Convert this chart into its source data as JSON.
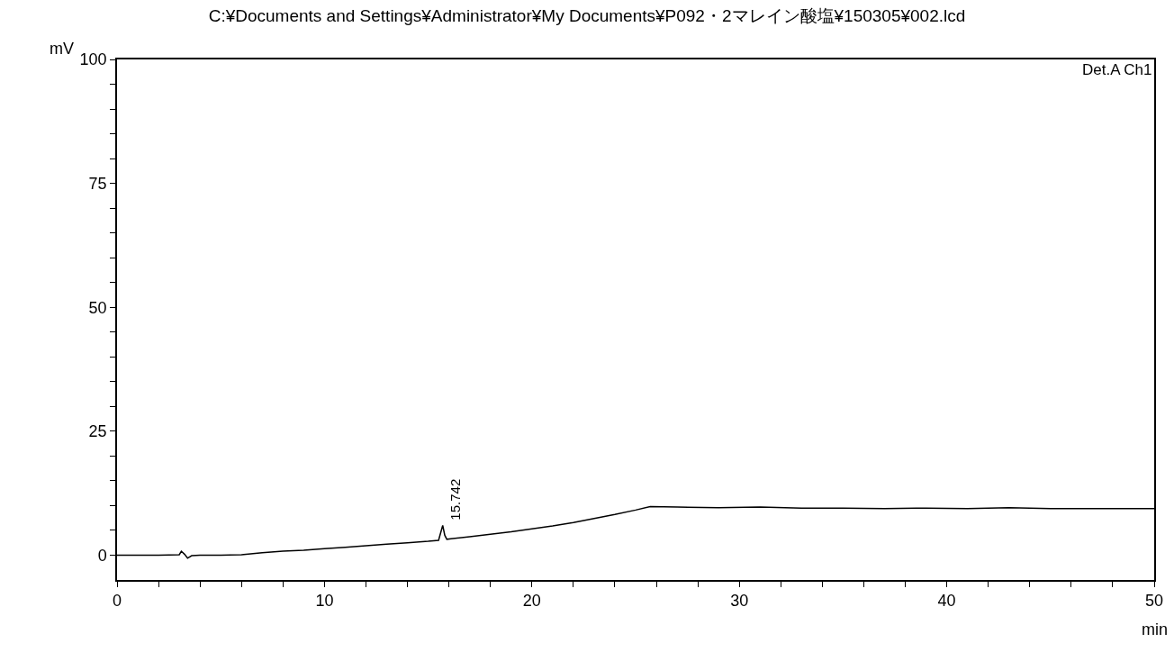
{
  "chart_data": {
    "type": "line",
    "title": "C:¥Documents and Settings¥Administrator¥My Documents¥P092・2マレイン酸塩¥150305¥002.lcd",
    "xlabel": "min",
    "ylabel": "mV",
    "x": [
      0,
      1,
      2,
      3,
      3.1,
      3.25,
      3.4,
      3.6,
      4,
      5,
      6,
      7,
      8,
      9,
      10,
      11,
      12,
      13,
      14,
      15,
      15.5,
      15.6,
      15.7,
      15.8,
      15.9,
      16.1,
      17,
      18,
      19,
      20,
      21,
      22,
      23,
      24,
      25,
      25.7,
      27,
      29,
      31,
      33,
      35,
      37,
      39,
      41,
      43,
      45,
      47,
      50
    ],
    "series": [
      {
        "color": "#000000",
        "values": [
          0,
          0,
          0,
          0.1,
          0.8,
          0.2,
          -0.6,
          -0.1,
          0,
          0,
          0.1,
          0.5,
          0.8,
          1.0,
          1.3,
          1.6,
          1.9,
          2.2,
          2.5,
          2.8,
          3.0,
          4.5,
          6.0,
          4.0,
          3.2,
          3.3,
          3.7,
          4.2,
          4.7,
          5.3,
          5.9,
          6.6,
          7.4,
          8.2,
          9.1,
          9.8,
          9.7,
          9.6,
          9.7,
          9.5,
          9.5,
          9.4,
          9.5,
          9.4,
          9.6,
          9.4,
          9.4,
          9.4
        ]
      }
    ],
    "xlim": [
      0,
      50
    ],
    "ylim": [
      -5,
      100
    ],
    "xticks": [
      0,
      {
        "value": 2,
        "label": null
      },
      {
        "value": 4,
        "label": null
      },
      {
        "value": 6,
        "label": null
      },
      {
        "value": 8,
        "label": null
      },
      10,
      {
        "value": 12,
        "label": null
      },
      {
        "value": 14,
        "label": null
      },
      {
        "value": 16,
        "label": null
      },
      {
        "value": 18,
        "label": null
      },
      20,
      {
        "value": 22,
        "label": null
      },
      {
        "value": 24,
        "label": null
      },
      {
        "value": 26,
        "label": null
      },
      {
        "value": 28,
        "label": null
      },
      30,
      {
        "value": 32,
        "label": null
      },
      {
        "value": 34,
        "label": null
      },
      {
        "value": 36,
        "label": null
      },
      {
        "value": 38,
        "label": null
      },
      40,
      {
        "value": 42,
        "label": null
      },
      {
        "value": 44,
        "label": null
      },
      {
        "value": 46,
        "label": null
      },
      {
        "value": 48,
        "label": null
      },
      50
    ],
    "yticks": [
      0,
      {
        "value": 5,
        "label": null
      },
      {
        "value": 10,
        "label": null
      },
      {
        "value": 15,
        "label": null
      },
      {
        "value": 20,
        "label": null
      },
      25,
      {
        "value": 30,
        "label": null
      },
      {
        "value": 35,
        "label": null
      },
      {
        "value": 40,
        "label": null
      },
      {
        "value": 45,
        "label": null
      },
      50,
      {
        "value": 55,
        "label": null
      },
      {
        "value": 60,
        "label": null
      },
      {
        "value": 65,
        "label": null
      },
      {
        "value": 70,
        "label": null
      },
      75,
      {
        "value": 80,
        "label": null
      },
      {
        "value": 85,
        "label": null
      },
      {
        "value": 90,
        "label": null
      },
      {
        "value": 95,
        "label": null
      },
      100
    ],
    "annotations": [
      "Det.A Ch1",
      {
        "text": "15.742",
        "x": 15.742,
        "y": 6.0
      }
    ],
    "marker": "none",
    "line_style": "solid"
  }
}
